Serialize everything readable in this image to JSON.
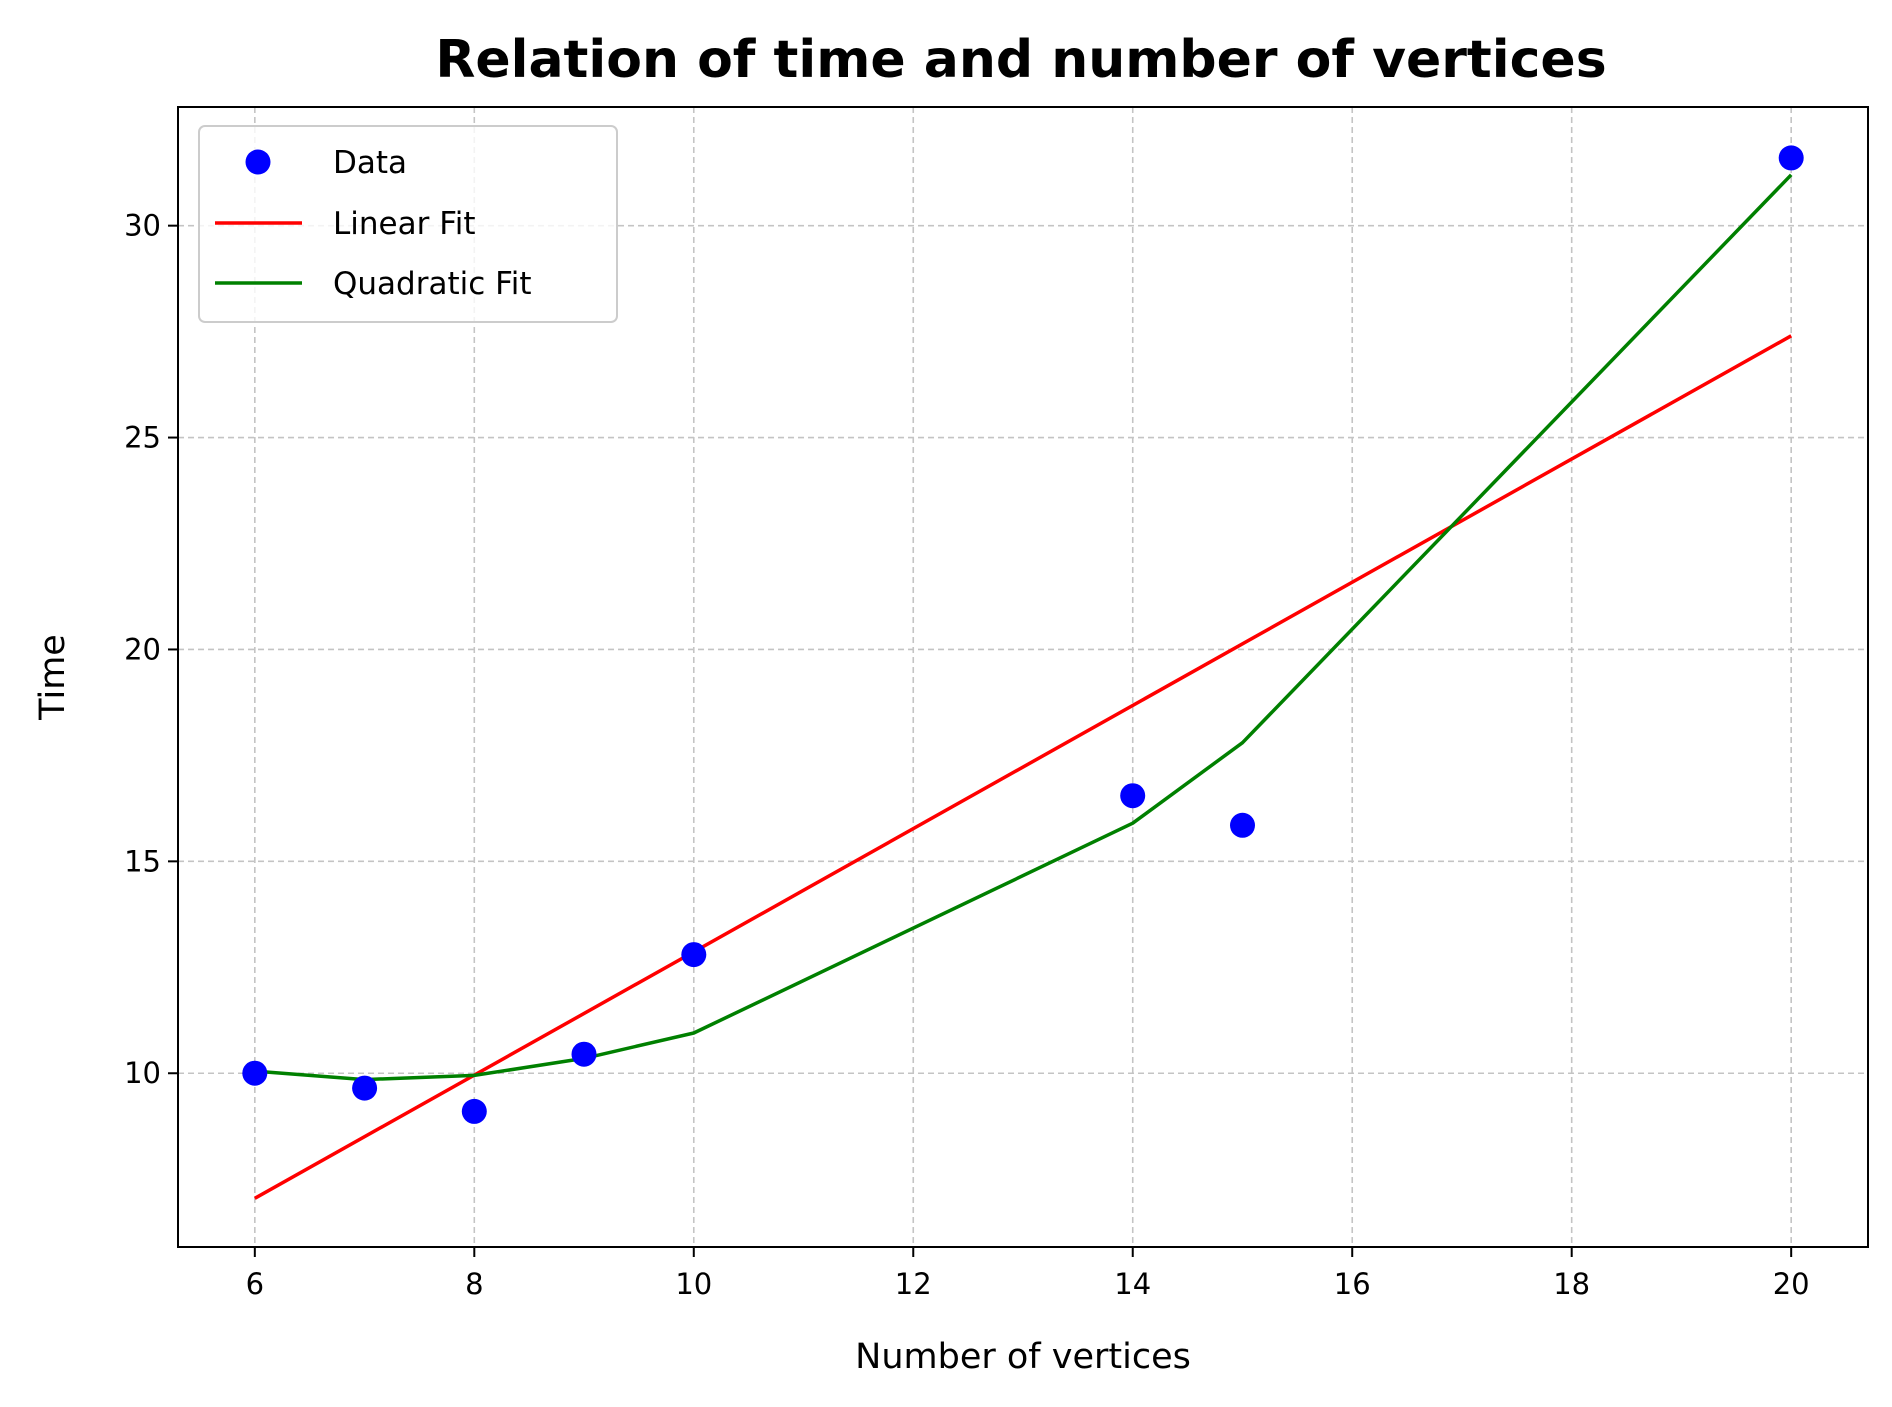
{
  "chart_data": {
    "type": "scatter",
    "title": "Relation of time and number of vertices",
    "xlabel": "Number of vertices",
    "ylabel": "Time",
    "xlim": [
      5.3,
      20.7
    ],
    "ylim": [
      5.9,
      32.8
    ],
    "xticks": [
      6,
      8,
      10,
      12,
      14,
      16,
      18,
      20
    ],
    "yticks": [
      10,
      15,
      20,
      25,
      30
    ],
    "grid": true,
    "legend_position": "top-left",
    "series": [
      {
        "name": "Data",
        "kind": "scatter",
        "color": "#0000ff",
        "x": [
          6,
          7,
          8,
          9,
          10,
          14,
          15,
          20
        ],
        "y": [
          10.0,
          9.65,
          9.1,
          10.45,
          12.8,
          16.55,
          15.85,
          31.6
        ]
      },
      {
        "name": "Linear Fit",
        "kind": "line",
        "color": "#ff0000",
        "x": [
          6,
          20
        ],
        "y": [
          7.05,
          27.4
        ]
      },
      {
        "name": "Quadratic Fit",
        "kind": "line",
        "color": "#008000",
        "x": [
          6,
          7,
          8,
          9,
          10,
          14,
          15,
          20
        ],
        "y": [
          10.05,
          9.85,
          9.95,
          10.35,
          10.95,
          15.9,
          17.8,
          31.2
        ]
      }
    ]
  }
}
